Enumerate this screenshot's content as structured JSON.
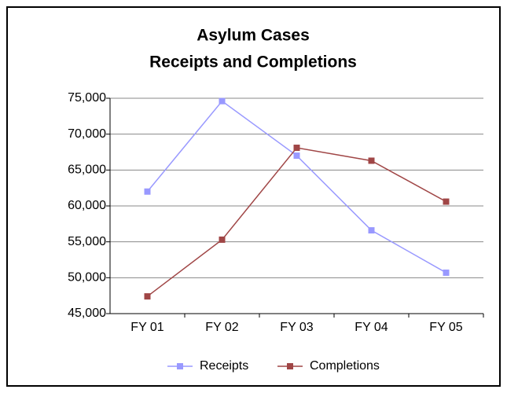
{
  "chart_data": {
    "type": "line",
    "title": [
      "Asylum Cases",
      "Receipts and Completions"
    ],
    "categories": [
      "FY 01",
      "FY 02",
      "FY 03",
      "FY 04",
      "FY 05"
    ],
    "series": [
      {
        "name": "Receipts",
        "color": "#9999ff",
        "values": [
          62000,
          74600,
          67000,
          56600,
          50700
        ]
      },
      {
        "name": "Completions",
        "color": "#a04646",
        "values": [
          47400,
          55300,
          68100,
          66300,
          60600
        ]
      }
    ],
    "ylim": [
      45000,
      75000
    ],
    "yticks": [
      {
        "value": 45000,
        "label": "45,000"
      },
      {
        "value": 50000,
        "label": "50,000"
      },
      {
        "value": 55000,
        "label": "55,000"
      },
      {
        "value": 60000,
        "label": "60,000"
      },
      {
        "value": 65000,
        "label": "65,000"
      },
      {
        "value": 70000,
        "label": "70,000"
      },
      {
        "value": 75000,
        "label": "75,000"
      }
    ],
    "grid": true,
    "legend": "bottom"
  }
}
